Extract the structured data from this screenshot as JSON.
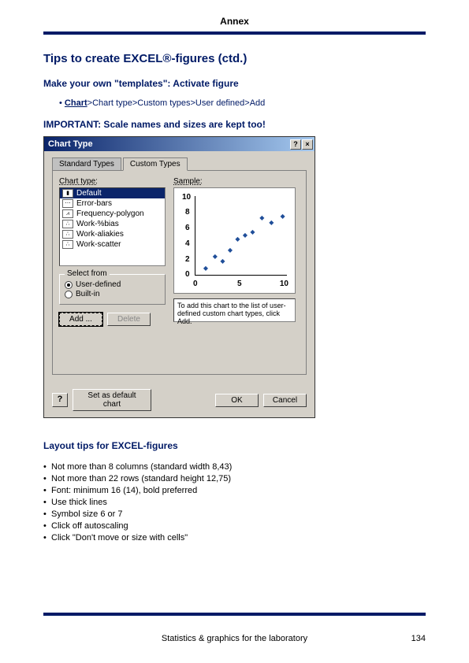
{
  "header": {
    "title": "Annex"
  },
  "colors": {
    "brand": "#001a66",
    "dialog_bg": "#d4d0c8",
    "titlebar_start": "#0a246a",
    "titlebar_end": "#a6caf0"
  },
  "section": {
    "title": "Tips to create EXCEL®-figures (ctd.)",
    "subtitle": "Make your own \"templates\": Activate figure",
    "breadcrumb_first": "Chart",
    "breadcrumb_rest": ">Chart type>Custom types>User defined>Add",
    "important": "IMPORTANT: Scale names and sizes are kept too!"
  },
  "dialog": {
    "title": "Chart Type",
    "help_sym": "?",
    "close_sym": "×",
    "tabs": {
      "standard": "Standard Types",
      "custom": "Custom Types"
    },
    "chart_type_label": "Chart type:",
    "sample_label": "Sample:",
    "list": [
      "Default",
      "Error-bars",
      "Frequency-polygon",
      "Work-%bias",
      "Work-aliakies",
      "Work-scatter"
    ],
    "select_from": {
      "label": "Select from",
      "user": "User-defined",
      "builtin": "Built-in"
    },
    "buttons": {
      "add": "Add ...",
      "delete": "Delete",
      "set_default": "Set as default chart",
      "ok": "OK",
      "cancel": "Cancel",
      "help": "?"
    },
    "description": "To add this chart to the list of user-defined custom chart types, click Add.",
    "chart": {
      "type": "scatter",
      "xlim": [
        0,
        10
      ],
      "ylim": [
        0,
        10
      ],
      "xticks": [
        0,
        5,
        10
      ],
      "yticks": [
        0,
        2,
        4,
        6,
        8,
        10
      ],
      "points": [
        {
          "x": 1.0,
          "y": 1.2
        },
        {
          "x": 2.0,
          "y": 2.6
        },
        {
          "x": 2.8,
          "y": 2.0
        },
        {
          "x": 3.6,
          "y": 3.4
        },
        {
          "x": 4.4,
          "y": 4.8
        },
        {
          "x": 5.2,
          "y": 5.2
        },
        {
          "x": 6.0,
          "y": 5.6
        },
        {
          "x": 7.0,
          "y": 7.4
        },
        {
          "x": 8.0,
          "y": 6.8
        },
        {
          "x": 9.2,
          "y": 7.6
        }
      ],
      "marker": "◆",
      "marker_color": "#1f4e99",
      "axis_fontsize": 10,
      "background": "#ffffff"
    }
  },
  "layout": {
    "title": "Layout tips for EXCEL-figures",
    "tips": [
      "Not more than 8 columns (standard width 8,43)",
      "Not more than 22 rows (standard height 12,75)",
      "Font: minimum 16 (14), bold preferred",
      "Use thick lines",
      "Symbol size 6 or 7",
      "Click off autoscaling",
      "Click \"Don't move or size with cells\""
    ]
  },
  "footer": {
    "text": "Statistics & graphics for the laboratory",
    "page": "134"
  }
}
